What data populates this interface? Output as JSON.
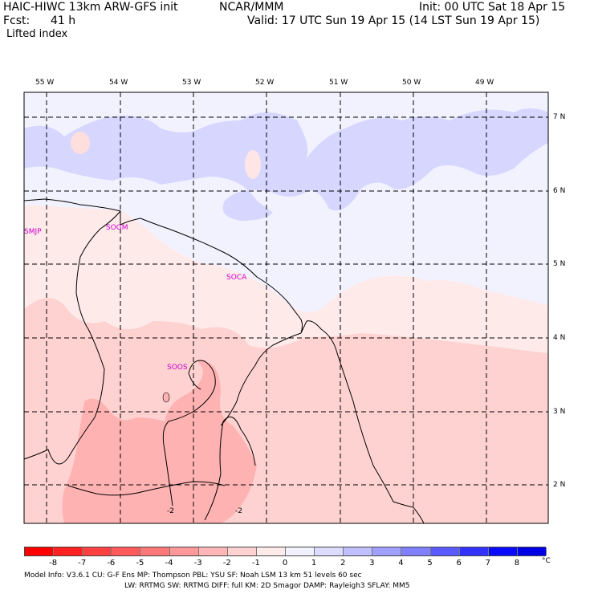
{
  "header": {
    "title_left": "HAIC-HIWC 13km ARW-GFS init",
    "title_center": "NCAR/MMM",
    "init_label": "Init: 00 UTC Sat 18 Apr 15",
    "fcst_label": "Fcst:",
    "fcst_value": "41 h",
    "valid_label": "Valid: 17 UTC Sun 19 Apr 15 (14 LST Sun 19 Apr 15)",
    "field": "Lifted index"
  },
  "map": {
    "lon_labels": [
      "55 W",
      "54 W",
      "53 W",
      "52 W",
      "51 W",
      "50 W",
      "49 W"
    ],
    "lat_labels": [
      "7 N",
      "6 N",
      "5 N",
      "4 N",
      "3 N",
      "2 N"
    ],
    "stations": [
      "SMJP",
      "SOGM",
      "SOCA",
      "SOOS"
    ],
    "contour_labels": [
      "-2",
      "-2"
    ]
  },
  "colorbar": {
    "labels": [
      "-8",
      "-7",
      "-6",
      "-5",
      "-4",
      "-3",
      "-2",
      "-1",
      "0",
      "1",
      "2",
      "3",
      "4",
      "5",
      "6",
      "7",
      "8"
    ],
    "unit": "°C",
    "colors": [
      "#ff0000",
      "#ff2020",
      "#ff4040",
      "#ff5a5a",
      "#ff7878",
      "#ff9898",
      "#ffb6b6",
      "#ffd2d2",
      "#ffeaea",
      "#f2f2ff",
      "#dcdcff",
      "#c0c0ff",
      "#a0a0ff",
      "#8080ff",
      "#5a5aff",
      "#3232ff",
      "#0a0aff",
      "#0000e6"
    ]
  },
  "footer": {
    "line1": "Model Info: V3.6.1    CU: G-F Ens  MP: Thompson     PBL: YSU      SF: Noah LSM     13 km    51 levels    60 sec",
    "line2": "LW: RRTMG    SW: RRTMG   DIFF: full    KM: 2D Smagor DAMP: Rayleigh3  SFLAY: MM5"
  }
}
